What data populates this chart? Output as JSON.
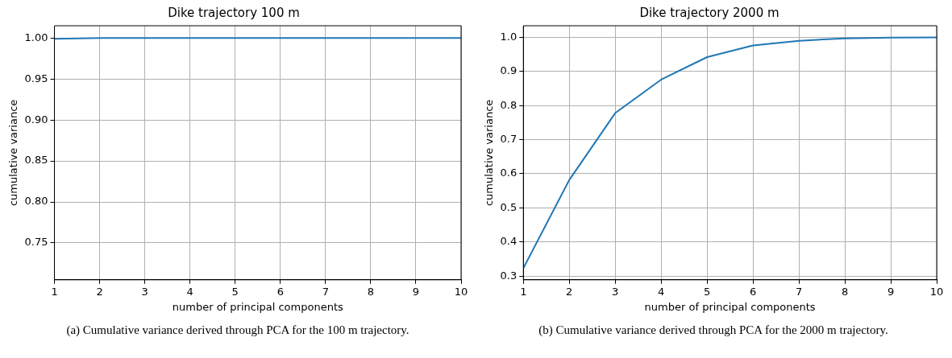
{
  "chart_data": [
    {
      "type": "line",
      "title": "Dike trajectory 100 m",
      "xlabel": "number of principal components",
      "ylabel": "cumulative variance",
      "x": [
        1,
        2,
        3,
        4,
        5,
        6,
        7,
        8,
        9,
        10
      ],
      "series": [
        {
          "color": "#1f77b4",
          "values": [
            0.999,
            1.0,
            1.0,
            1.0,
            1.0,
            1.0,
            1.0,
            1.0,
            1.0,
            1.0
          ]
        }
      ],
      "xlim": [
        1,
        10
      ],
      "xticks": [
        1,
        2,
        3,
        4,
        5,
        6,
        7,
        8,
        9,
        10
      ],
      "ylim": [
        0.705,
        1.015
      ],
      "yticks": [
        {
          "value": 0.75,
          "label": "0.75"
        },
        {
          "value": 0.8,
          "label": "0.80"
        },
        {
          "value": 0.85,
          "label": "0.85"
        },
        {
          "value": 0.9,
          "label": "0.90"
        },
        {
          "value": 0.95,
          "label": "0.95"
        },
        {
          "value": 1.0,
          "label": "1.00"
        }
      ],
      "grid": true,
      "marker": "none",
      "line_style": "solid",
      "annotations": [
        "(a) Cumulative variance derived through PCA for the 100 m trajectory."
      ]
    },
    {
      "type": "line",
      "title": "Dike trajectory 2000 m",
      "xlabel": "number of principal components",
      "ylabel": "cumulative variance",
      "x": [
        1,
        2,
        3,
        4,
        5,
        6,
        7,
        8,
        9,
        10
      ],
      "series": [
        {
          "color": "#1f77b4",
          "values": [
            0.323,
            0.582,
            0.778,
            0.876,
            0.942,
            0.976,
            0.99,
            0.997,
            0.999,
            1.0
          ]
        }
      ],
      "xlim": [
        1,
        10
      ],
      "xticks": [
        1,
        2,
        3,
        4,
        5,
        6,
        7,
        8,
        9,
        10
      ],
      "ylim": [
        0.289,
        1.034
      ],
      "yticks": [
        0.3,
        0.4,
        0.5,
        0.6,
        0.7,
        0.8,
        0.9,
        {
          "value": 1.0,
          "label": "1.0"
        }
      ],
      "grid": true,
      "marker": "none",
      "line_style": "solid",
      "annotations": [
        "(b) Cumulative variance derived through PCA for the 2000 m trajectory."
      ]
    }
  ]
}
